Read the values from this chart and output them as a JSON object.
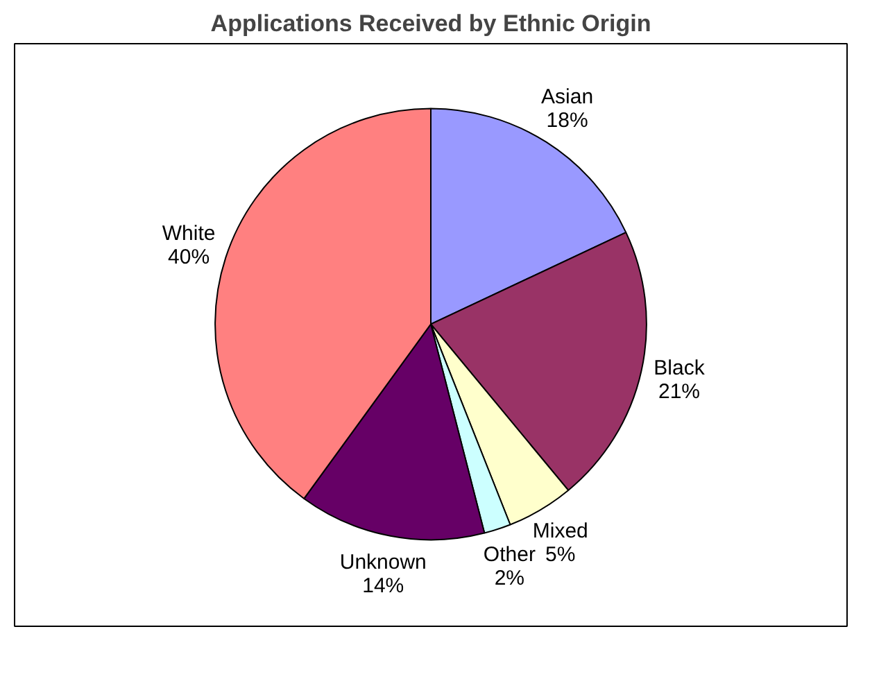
{
  "chart_data": {
    "type": "pie",
    "title": "Applications Received by Ethnic Origin",
    "categories": [
      "Asian",
      "Black",
      "Mixed",
      "Other",
      "Unknown",
      "White"
    ],
    "values": [
      18,
      21,
      5,
      2,
      14,
      40
    ],
    "value_labels": [
      "18%",
      "21%",
      "5%",
      "2%",
      "14%",
      "40%"
    ],
    "colors": [
      "#9999ff",
      "#993366",
      "#ffffcc",
      "#ccffff",
      "#660066",
      "#ff8080"
    ]
  }
}
